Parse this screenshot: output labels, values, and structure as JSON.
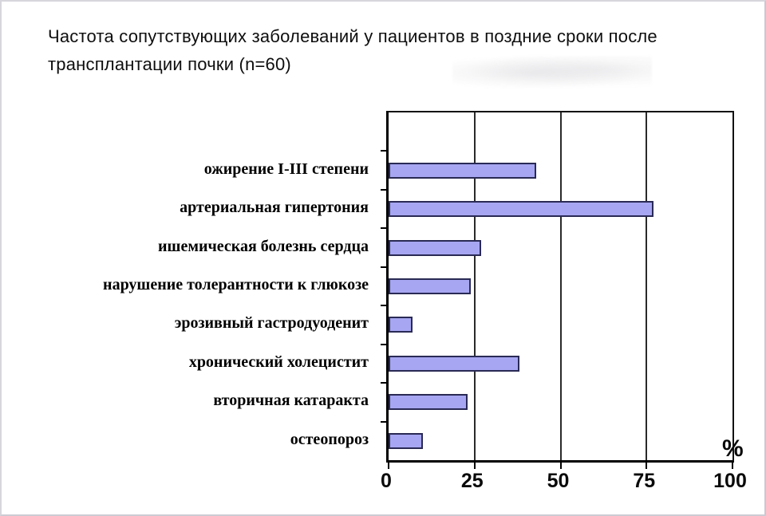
{
  "title": {
    "line_full": "Частота сопутствующих заболеваний у пациентов в поздние сроки после трансплантации почки (n=60)"
  },
  "chart_data": {
    "type": "bar",
    "orientation": "horizontal",
    "title": "Частота сопутствующих заболеваний у пациентов в поздние сроки после трансплантации почки (n=60)",
    "n": 60,
    "categories": [
      "ожирение I-III степени",
      "артериальная гипертония",
      "ишемическая болезнь сердца",
      "нарушение толерантности к глюкозе",
      "эрозивный гастродуоденит",
      "хронический холецистит",
      "вторичная катаракта",
      "остеопороз"
    ],
    "values": [
      43,
      77,
      27,
      24,
      7,
      38,
      23,
      10
    ],
    "xlabel": "%",
    "x_ticks": [
      "0",
      "25",
      "50",
      "75",
      "100"
    ],
    "x_tick_values": [
      0,
      25,
      50,
      75,
      100
    ],
    "xlim": [
      0,
      100
    ],
    "grid": true,
    "legend": false,
    "bar_fill_color": "#a6a6f2",
    "bar_border_color": "#2a2a55",
    "axis_color": "#000000",
    "empty_top_band": true
  }
}
